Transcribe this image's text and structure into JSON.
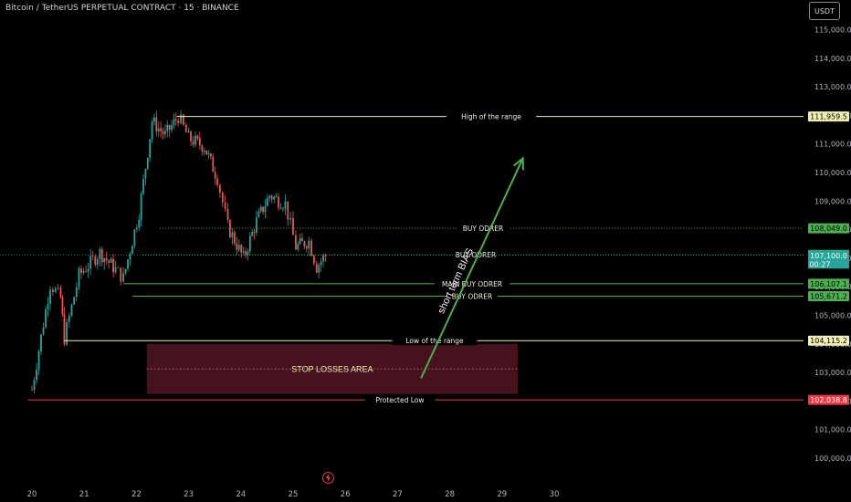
{
  "header": {
    "symbol_title": "Bitcoin / TetherUS PERPETUAL CONTRACT · 15 · BINANCE",
    "currency_button": "USDT"
  },
  "colors": {
    "background": "#000000",
    "up_candle": "#26a69a",
    "down_candle": "#ef5350",
    "buy_order_line": "#4caf50",
    "range_line": "#f0f0b4",
    "protected_low_line": "#f23645",
    "stop_area_fill": "#4a1320",
    "bias_arrow": "#4caf50"
  },
  "chart_data": {
    "type": "candlestick",
    "price_axis": {
      "ylim": [
        99300,
        115500
      ],
      "tick_labels": [
        "115,000.0",
        "114,000.0",
        "113,000.0",
        "112,000.0",
        "111,000.0",
        "110,000.0",
        "109,000.0",
        "108,000.0",
        "107,000.0",
        "106,000.0",
        "105,000.0",
        "104,000.0",
        "103,000.0",
        "102,000.0",
        "101,000.0",
        "100,000.0"
      ],
      "tick_values": [
        115000,
        114000,
        113000,
        112000,
        111000,
        110000,
        109000,
        108000,
        107000,
        106000,
        105000,
        104000,
        103000,
        102000,
        101000,
        100000
      ]
    },
    "time_axis": {
      "day_range": [
        19.92,
        31.0
      ],
      "tick_labels": [
        "20",
        "21",
        "22",
        "23",
        "24",
        "25",
        "26",
        "27",
        "28",
        "29",
        "30"
      ],
      "tick_days": [
        20,
        21,
        22,
        23,
        24,
        25,
        26,
        27,
        28,
        29,
        30
      ]
    },
    "price_path": [
      [
        20.0,
        102400
      ],
      [
        20.35,
        106100
      ],
      [
        20.55,
        105600
      ],
      [
        20.62,
        104200
      ],
      [
        20.9,
        106400
      ],
      [
        21.3,
        107200
      ],
      [
        21.6,
        106600
      ],
      [
        21.75,
        106300
      ],
      [
        22.05,
        108600
      ],
      [
        22.3,
        111800
      ],
      [
        22.55,
        111300
      ],
      [
        22.8,
        111959.5
      ],
      [
        23.0,
        111200
      ],
      [
        23.3,
        110900
      ],
      [
        23.55,
        109800
      ],
      [
        23.75,
        108100
      ],
      [
        24.05,
        107000
      ],
      [
        24.3,
        108300
      ],
      [
        24.55,
        109200
      ],
      [
        24.85,
        108900
      ],
      [
        25.05,
        107400
      ],
      [
        25.3,
        107600
      ],
      [
        25.45,
        106700
      ],
      [
        25.62,
        107100
      ]
    ],
    "series": [],
    "annotations": {
      "levels": [
        {
          "label": "High of the range",
          "price": 111959.5,
          "price_label": "111,959.5",
          "start_day": 22.77,
          "style": "solid",
          "kind": "range"
        },
        {
          "label": "BUY ODRER",
          "price": 108049.0,
          "price_label": "108,049.0",
          "start_day": 22.45,
          "style": "dotted",
          "kind": "buy"
        },
        {
          "label": "BUY ODRER",
          "price": 107117.7,
          "price_label": "107,117.7",
          "start_day": 22.12,
          "style": "dotted",
          "kind": "buy"
        },
        {
          "label": "MAIN BUY ODRER",
          "price": 106107.1,
          "price_label": "106,107.1",
          "start_day": 21.75,
          "style": "solid",
          "kind": "buy"
        },
        {
          "label": "BUY ODRER",
          "price": 105671.2,
          "price_label": "105,671.2",
          "start_day": 21.93,
          "style": "solid",
          "kind": "buy"
        },
        {
          "label": "Low of the range",
          "price": 104115.2,
          "price_label": "104,115.2",
          "start_day": 20.62,
          "style": "solid",
          "kind": "range"
        },
        {
          "label": "Protected Low",
          "price": 102038.8,
          "price_label": "102,038.8",
          "start_day": 19.92,
          "style": "solid",
          "kind": "protected"
        }
      ],
      "current_price": {
        "price": 107100.0,
        "price_label": "107,100.0",
        "countdown": "00:27"
      },
      "stop_losses_area": {
        "label": "STOP LOSSES AREA",
        "day_start": 22.2,
        "day_end": 29.3,
        "price_top": 104000,
        "price_bottom": 102250
      },
      "bias_arrow": {
        "label": "short term BIAS",
        "from": [
          27.45,
          102800
        ],
        "to": [
          29.4,
          110500
        ]
      }
    }
  }
}
